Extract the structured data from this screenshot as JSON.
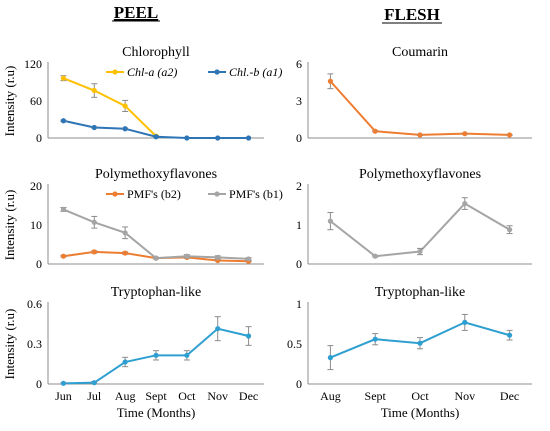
{
  "headers": {
    "left": "PEEL",
    "right": "FLESH"
  },
  "shared": {
    "ylabel": "Intensity (r.u)",
    "xlabel": "Time (Months)"
  },
  "chart_data": [
    {
      "id": "peel-chlorophyll",
      "type": "line",
      "title": "Chlorophyll",
      "column": "left",
      "row": 1,
      "xlabel": "",
      "ylabel": "Intensity (r.u)",
      "categories": [
        "Jun",
        "Jul",
        "Aug",
        "Sept",
        "Oct",
        "Nov",
        "Dec"
      ],
      "show_xticks": false,
      "ylim": [
        0,
        120
      ],
      "yticks": [
        0,
        60,
        120
      ],
      "legend": "top-right",
      "series": [
        {
          "name": "Chl-a (a2)",
          "legend_italic": true,
          "color": "#FFC000",
          "values": [
            97,
            77,
            52,
            3,
            null,
            null,
            null
          ],
          "errors": [
            4,
            11,
            9,
            1,
            null,
            null,
            null
          ]
        },
        {
          "name": "Chl.-b (a1)",
          "legend_italic": true,
          "color": "#2E75B6",
          "values": [
            28,
            17,
            15,
            2,
            0,
            0,
            0
          ],
          "errors": [
            1,
            1,
            1,
            0,
            0,
            0,
            0
          ]
        }
      ]
    },
    {
      "id": "peel-pmf",
      "type": "line",
      "title": "Polymethoxyflavones",
      "column": "left",
      "row": 2,
      "xlabel": "",
      "ylabel": "Intensity (r.u)",
      "categories": [
        "Jun",
        "Jul",
        "Aug",
        "Sept",
        "Oct",
        "Nov",
        "Dec"
      ],
      "show_xticks": false,
      "ylim": [
        0,
        20
      ],
      "yticks": [
        0,
        10,
        20
      ],
      "legend": "top-right",
      "series": [
        {
          "name": "PMF's (b2)",
          "legend_italic": false,
          "color": "#ED7D31",
          "values": [
            2,
            3.1,
            2.8,
            1.5,
            1.7,
            0.9,
            0.7
          ],
          "errors": [
            0.2,
            0.3,
            0.3,
            0.2,
            0.2,
            0.1,
            0.1
          ]
        },
        {
          "name": "PMF's (b1)",
          "legend_italic": false,
          "color": "#A5A5A5",
          "values": [
            14,
            10.7,
            8,
            1.5,
            2,
            1.7,
            1.3
          ],
          "errors": [
            0.5,
            1.5,
            1.5,
            0.2,
            0.4,
            0.4,
            0.3
          ]
        }
      ]
    },
    {
      "id": "peel-tryptophan",
      "type": "line",
      "title": "Tryptophan-like",
      "column": "left",
      "row": 3,
      "xlabel": "Time (Months)",
      "ylabel": "Intensity (r.u)",
      "categories": [
        "Jun",
        "Jul",
        "Aug",
        "Sept",
        "Oct",
        "Nov",
        "Dec"
      ],
      "show_xticks": true,
      "ylim": [
        0,
        0.6
      ],
      "yticks": [
        "0",
        "0.3",
        "0.6"
      ],
      "legend": "none",
      "series": [
        {
          "name": "",
          "color": "#2E9FD0",
          "values": [
            0.005,
            0.01,
            0.165,
            0.215,
            0.215,
            0.415,
            0.36
          ],
          "errors": [
            0.005,
            0.008,
            0.035,
            0.035,
            0.035,
            0.09,
            0.07
          ]
        }
      ]
    },
    {
      "id": "flesh-coumarin",
      "type": "line",
      "title": "Coumarin",
      "column": "right",
      "row": 1,
      "xlabel": "",
      "ylabel": "",
      "categories": [
        "Aug",
        "Sept",
        "Oct",
        "Nov",
        "Dec"
      ],
      "show_xticks": false,
      "ylim": [
        0,
        6
      ],
      "yticks": [
        0,
        3,
        6
      ],
      "legend": "none",
      "series": [
        {
          "name": "",
          "color": "#ED7D31",
          "values": [
            4.6,
            0.55,
            0.25,
            0.35,
            0.25
          ],
          "errors": [
            0.6,
            0.05,
            0.03,
            0.03,
            0.03
          ]
        }
      ]
    },
    {
      "id": "flesh-pmf",
      "type": "line",
      "title": "Polymethoxyflavones",
      "column": "right",
      "row": 2,
      "xlabel": "",
      "ylabel": "",
      "categories": [
        "Aug",
        "Sept",
        "Oct",
        "Nov",
        "Dec"
      ],
      "show_xticks": false,
      "ylim": [
        0,
        2
      ],
      "yticks": [
        0,
        1,
        2
      ],
      "legend": "none",
      "series": [
        {
          "name": "",
          "color": "#A5A5A5",
          "values": [
            1.1,
            0.2,
            0.32,
            1.55,
            0.88
          ],
          "errors": [
            0.22,
            0.02,
            0.08,
            0.15,
            0.1
          ]
        }
      ]
    },
    {
      "id": "flesh-tryptophan",
      "type": "line",
      "title": "Tryptophan-like",
      "column": "right",
      "row": 3,
      "xlabel": "Time (Months)",
      "ylabel": "",
      "categories": [
        "Aug",
        "Sept",
        "Oct",
        "Nov",
        "Dec"
      ],
      "show_xticks": true,
      "ylim": [
        0,
        1
      ],
      "yticks": [
        "0",
        "0.5",
        "1"
      ],
      "legend": "none",
      "series": [
        {
          "name": "",
          "color": "#2E9FD0",
          "values": [
            0.33,
            0.56,
            0.51,
            0.77,
            0.61
          ],
          "errors": [
            0.15,
            0.07,
            0.07,
            0.1,
            0.06
          ]
        }
      ]
    }
  ]
}
